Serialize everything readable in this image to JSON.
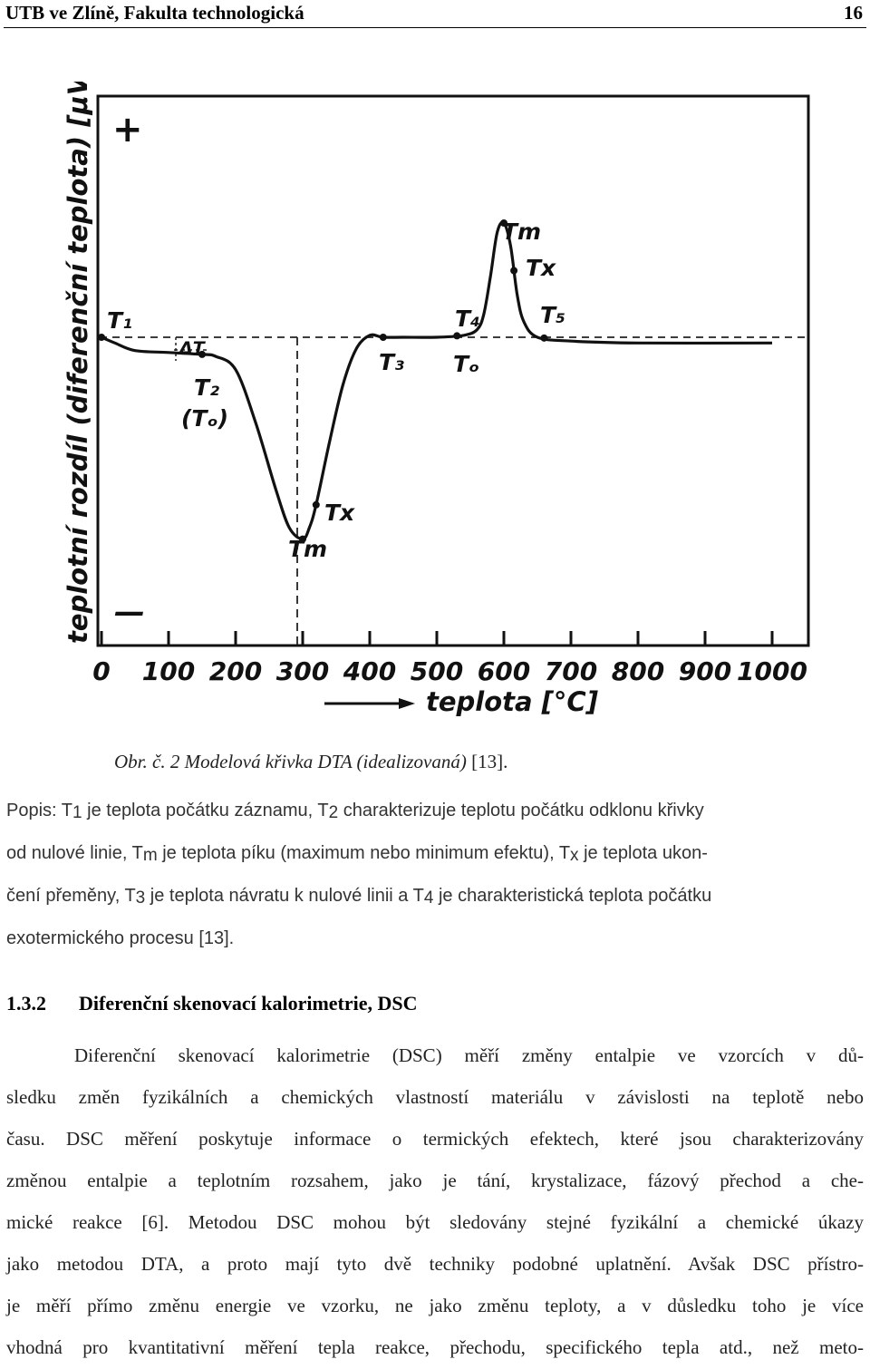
{
  "header": {
    "left": "UTB ve Zlíně, Fakulta technologická",
    "right": "16"
  },
  "figure": {
    "y_axis_label": "teplotní rozdíl (diferenční teplota) [μV]",
    "x_axis_label": "teplota [°C]",
    "plus": "+",
    "minus": "—",
    "x_ticks": [
      "0",
      "100",
      "200",
      "300",
      "400",
      "500",
      "600",
      "700",
      "800",
      "900",
      "1000"
    ],
    "annotations": {
      "T1": "T₁",
      "dT": "ΔT",
      "T2": "T₂",
      "To_paren": "(Tₒ)",
      "Tm_low": "Tm",
      "Tx_low": "Tx",
      "T3": "T₃",
      "T4": "T₄",
      "To": "Tₒ",
      "Tm_high": "Tm",
      "Tx_high": "Tx",
      "T5": "T₅"
    }
  },
  "chart_data": {
    "type": "line",
    "title": "",
    "xlabel": "teplota [°C]",
    "ylabel": "teplotní rozdíl (diferenční teplota) [μV]",
    "xlim": [
      0,
      1000
    ],
    "x_ticks": [
      0,
      100,
      200,
      300,
      400,
      500,
      600,
      700,
      800,
      900,
      1000
    ],
    "series": [
      {
        "x": [
          0,
          20,
          50,
          100,
          150,
          170,
          200,
          230,
          260,
          280,
          300,
          310,
          320,
          340,
          360,
          380,
          400,
          420,
          450,
          500,
          540,
          560,
          570,
          580,
          590,
          600,
          610,
          620,
          630,
          650,
          700,
          800,
          1000
        ],
        "y": [
          0,
          -0.03,
          -0.07,
          -0.08,
          -0.09,
          -0.1,
          -0.17,
          -0.45,
          -0.8,
          -1.0,
          -1.06,
          -1.0,
          -0.88,
          -0.55,
          -0.25,
          -0.06,
          0.01,
          0.0,
          0.0,
          0.0,
          0.01,
          0.04,
          0.12,
          0.32,
          0.55,
          0.6,
          0.48,
          0.22,
          0.08,
          0.0,
          -0.02,
          -0.03,
          -0.03
        ]
      }
    ],
    "points": [
      {
        "label": "T1",
        "x": 0
      },
      {
        "label": "T2",
        "x": 150
      },
      {
        "label": "Tm",
        "x": 300
      },
      {
        "label": "Tx",
        "x": 320
      },
      {
        "label": "T3",
        "x": 420
      },
      {
        "label": "T4",
        "x": 530
      },
      {
        "label": "Tm",
        "x": 600
      },
      {
        "label": "Tx",
        "x": 615
      },
      {
        "label": "T5",
        "x": 660
      }
    ]
  },
  "caption": {
    "prefix": "Obr. č. 2",
    "title": "Modelová křivka DTA (idealizovaná)",
    "ref": " [13]."
  },
  "popis": {
    "l1a": "Popis: T",
    "s1": "1",
    "l1b": " je teplota počátku záznamu, T",
    "s2": "2",
    "l1c": " charakterizuje teplotu počátku odklonu křivky",
    "l2a": "od nulové linie, T",
    "s3": "m",
    "l2b": " je teplota píku (maximum nebo minimum efektu), T",
    "s4": "x",
    "l2c": " je teplota ukon-",
    "l3a": "čení přeměny, T",
    "s5": "3",
    "l3b": " je teplota návratu k nulové linii a T",
    "s6": "4",
    "l3c": "  je charakteristická teplota počátku",
    "l4": "exotermického procesu [13]."
  },
  "section": {
    "number": "1.3.2",
    "title": "Diferenční skenovací kalorimetrie, DSC"
  },
  "body_lines": [
    "Diferenční skenovací kalorimetrie (DSC) měří změny entalpie ve vzorcích v dů-",
    "sledku změn fyzikálních a chemických vlastností materiálu v závislosti na teplotě nebo",
    "času. DSC měření poskytuje informace o termických efektech, které jsou charakterizovány",
    "změnou entalpie a teplotním rozsahem, jako je tání, krystalizace, fázový přechod a che-",
    "mické reakce [6]. Metodou DSC mohou být sledovány stejné fyzikální a chemické úkazy",
    "jako metodou DTA, a proto mají tyto dvě techniky podobné uplatnění. Avšak DSC přístro-",
    "je měří přímo změnu energie ve vzorku, ne jako změnu teploty, a v důsledku toho je více",
    "vhodná pro kvantitativní měření tepla reakce, přechodu, specifického tepla atd., než meto-"
  ]
}
